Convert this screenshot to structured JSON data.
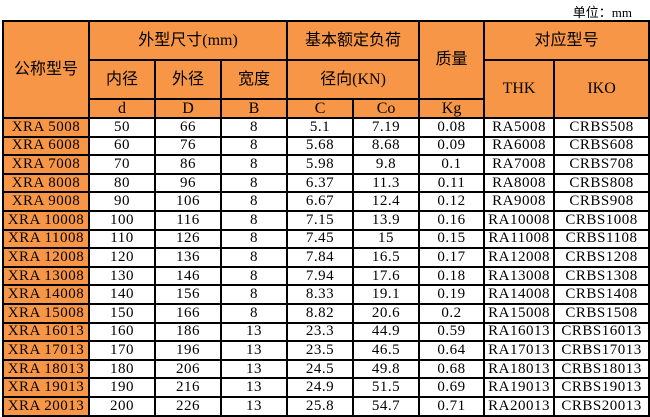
{
  "unit_label": "单位：mm",
  "header": {
    "model": "公称型号",
    "dimensions": "外型尺寸(mm)",
    "load": "基本额定负荷",
    "mass": "质量",
    "equivalent": "对应型号",
    "inner": "内径",
    "outer": "外径",
    "width": "宽度",
    "radial": "径向(KN)",
    "thk": "THK",
    "iko": "IKO",
    "d": "d",
    "D": "D",
    "B": "B",
    "C": "C",
    "Co": "Co",
    "kg": "Kg"
  },
  "colors": {
    "header_bg": "#F79646",
    "border": "#000000"
  },
  "rows": [
    [
      "XRA 5008",
      "50",
      "66",
      "8",
      "5.1",
      "7.19",
      "0.08",
      "RA5008",
      "CRBS508"
    ],
    [
      "XRA 6008",
      "60",
      "76",
      "8",
      "5.68",
      "8.68",
      "0.09",
      "RA6008",
      "CRBS608"
    ],
    [
      "XRA 7008",
      "70",
      "86",
      "8",
      "5.98",
      "9.8",
      "0.1",
      "RA7008",
      "CRBS708"
    ],
    [
      "XRA 8008",
      "80",
      "96",
      "8",
      "6.37",
      "11.3",
      "0.11",
      "RA8008",
      "CRBS808"
    ],
    [
      "XRA 9008",
      "90",
      "106",
      "8",
      "6.67",
      "12.4",
      "0.12",
      "RA9008",
      "CRBS908"
    ],
    [
      "XRA 10008",
      "100",
      "116",
      "8",
      "7.15",
      "13.9",
      "0.16",
      "RA10008",
      "CRBS1008"
    ],
    [
      "XRA 11008",
      "110",
      "126",
      "8",
      "7.45",
      "15",
      "0.15",
      "RA11008",
      "CRBS1108"
    ],
    [
      "XRA 12008",
      "120",
      "136",
      "8",
      "7.84",
      "16.5",
      "0.17",
      "RA12008",
      "CRBS1208"
    ],
    [
      "XRA 13008",
      "130",
      "146",
      "8",
      "7.94",
      "17.6",
      "0.18",
      "RA13008",
      "CRBS1308"
    ],
    [
      "XRA 14008",
      "140",
      "156",
      "8",
      "8.33",
      "19.1",
      "0.19",
      "RA14008",
      "CRBS1408"
    ],
    [
      "XRA 15008",
      "150",
      "166",
      "8",
      "8.82",
      "20.6",
      "0.2",
      "RA15008",
      "CRBS1508"
    ],
    [
      "XRA 16013",
      "160",
      "186",
      "13",
      "23.3",
      "44.9",
      "0.59",
      "RA16013",
      "CRBS16013"
    ],
    [
      "XRA 17013",
      "170",
      "196",
      "13",
      "23.5",
      "46.5",
      "0.64",
      "RA17013",
      "CRBS17013"
    ],
    [
      "XRA 18013",
      "180",
      "206",
      "13",
      "24.5",
      "49.8",
      "0.68",
      "RA18013",
      "CRBS18013"
    ],
    [
      "XRA 19013",
      "190",
      "216",
      "13",
      "24.9",
      "51.5",
      "0.69",
      "RA19013",
      "CRBS19013"
    ],
    [
      "XRA 20013",
      "200",
      "226",
      "13",
      "25.8",
      "54.7",
      "0.71",
      "RA20013",
      "CRBS20013"
    ]
  ]
}
